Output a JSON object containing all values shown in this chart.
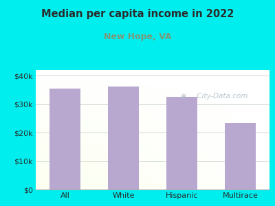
{
  "title": "Median per capita income in 2022",
  "subtitle": "New Hope, VA",
  "title_color": "#2a2a2a",
  "subtitle_color": "#7a9a7a",
  "categories": [
    "All",
    "White",
    "Hispanic",
    "Multirace"
  ],
  "values": [
    35500,
    36200,
    32500,
    23500
  ],
  "bar_color": "#b8a8d0",
  "background_color": "#00eeee",
  "ylim": [
    0,
    42000
  ],
  "yticks": [
    0,
    10000,
    20000,
    30000,
    40000
  ],
  "ytick_labels": [
    "$0",
    "$10k",
    "$20k",
    "$30k",
    "$40k"
  ],
  "watermark": " City-Data.com",
  "watermark_color": "#b0bcc8",
  "tick_color": "#2a2a2a",
  "grid_color": "#d0d8d0",
  "spine_color": "#aaaaaa"
}
